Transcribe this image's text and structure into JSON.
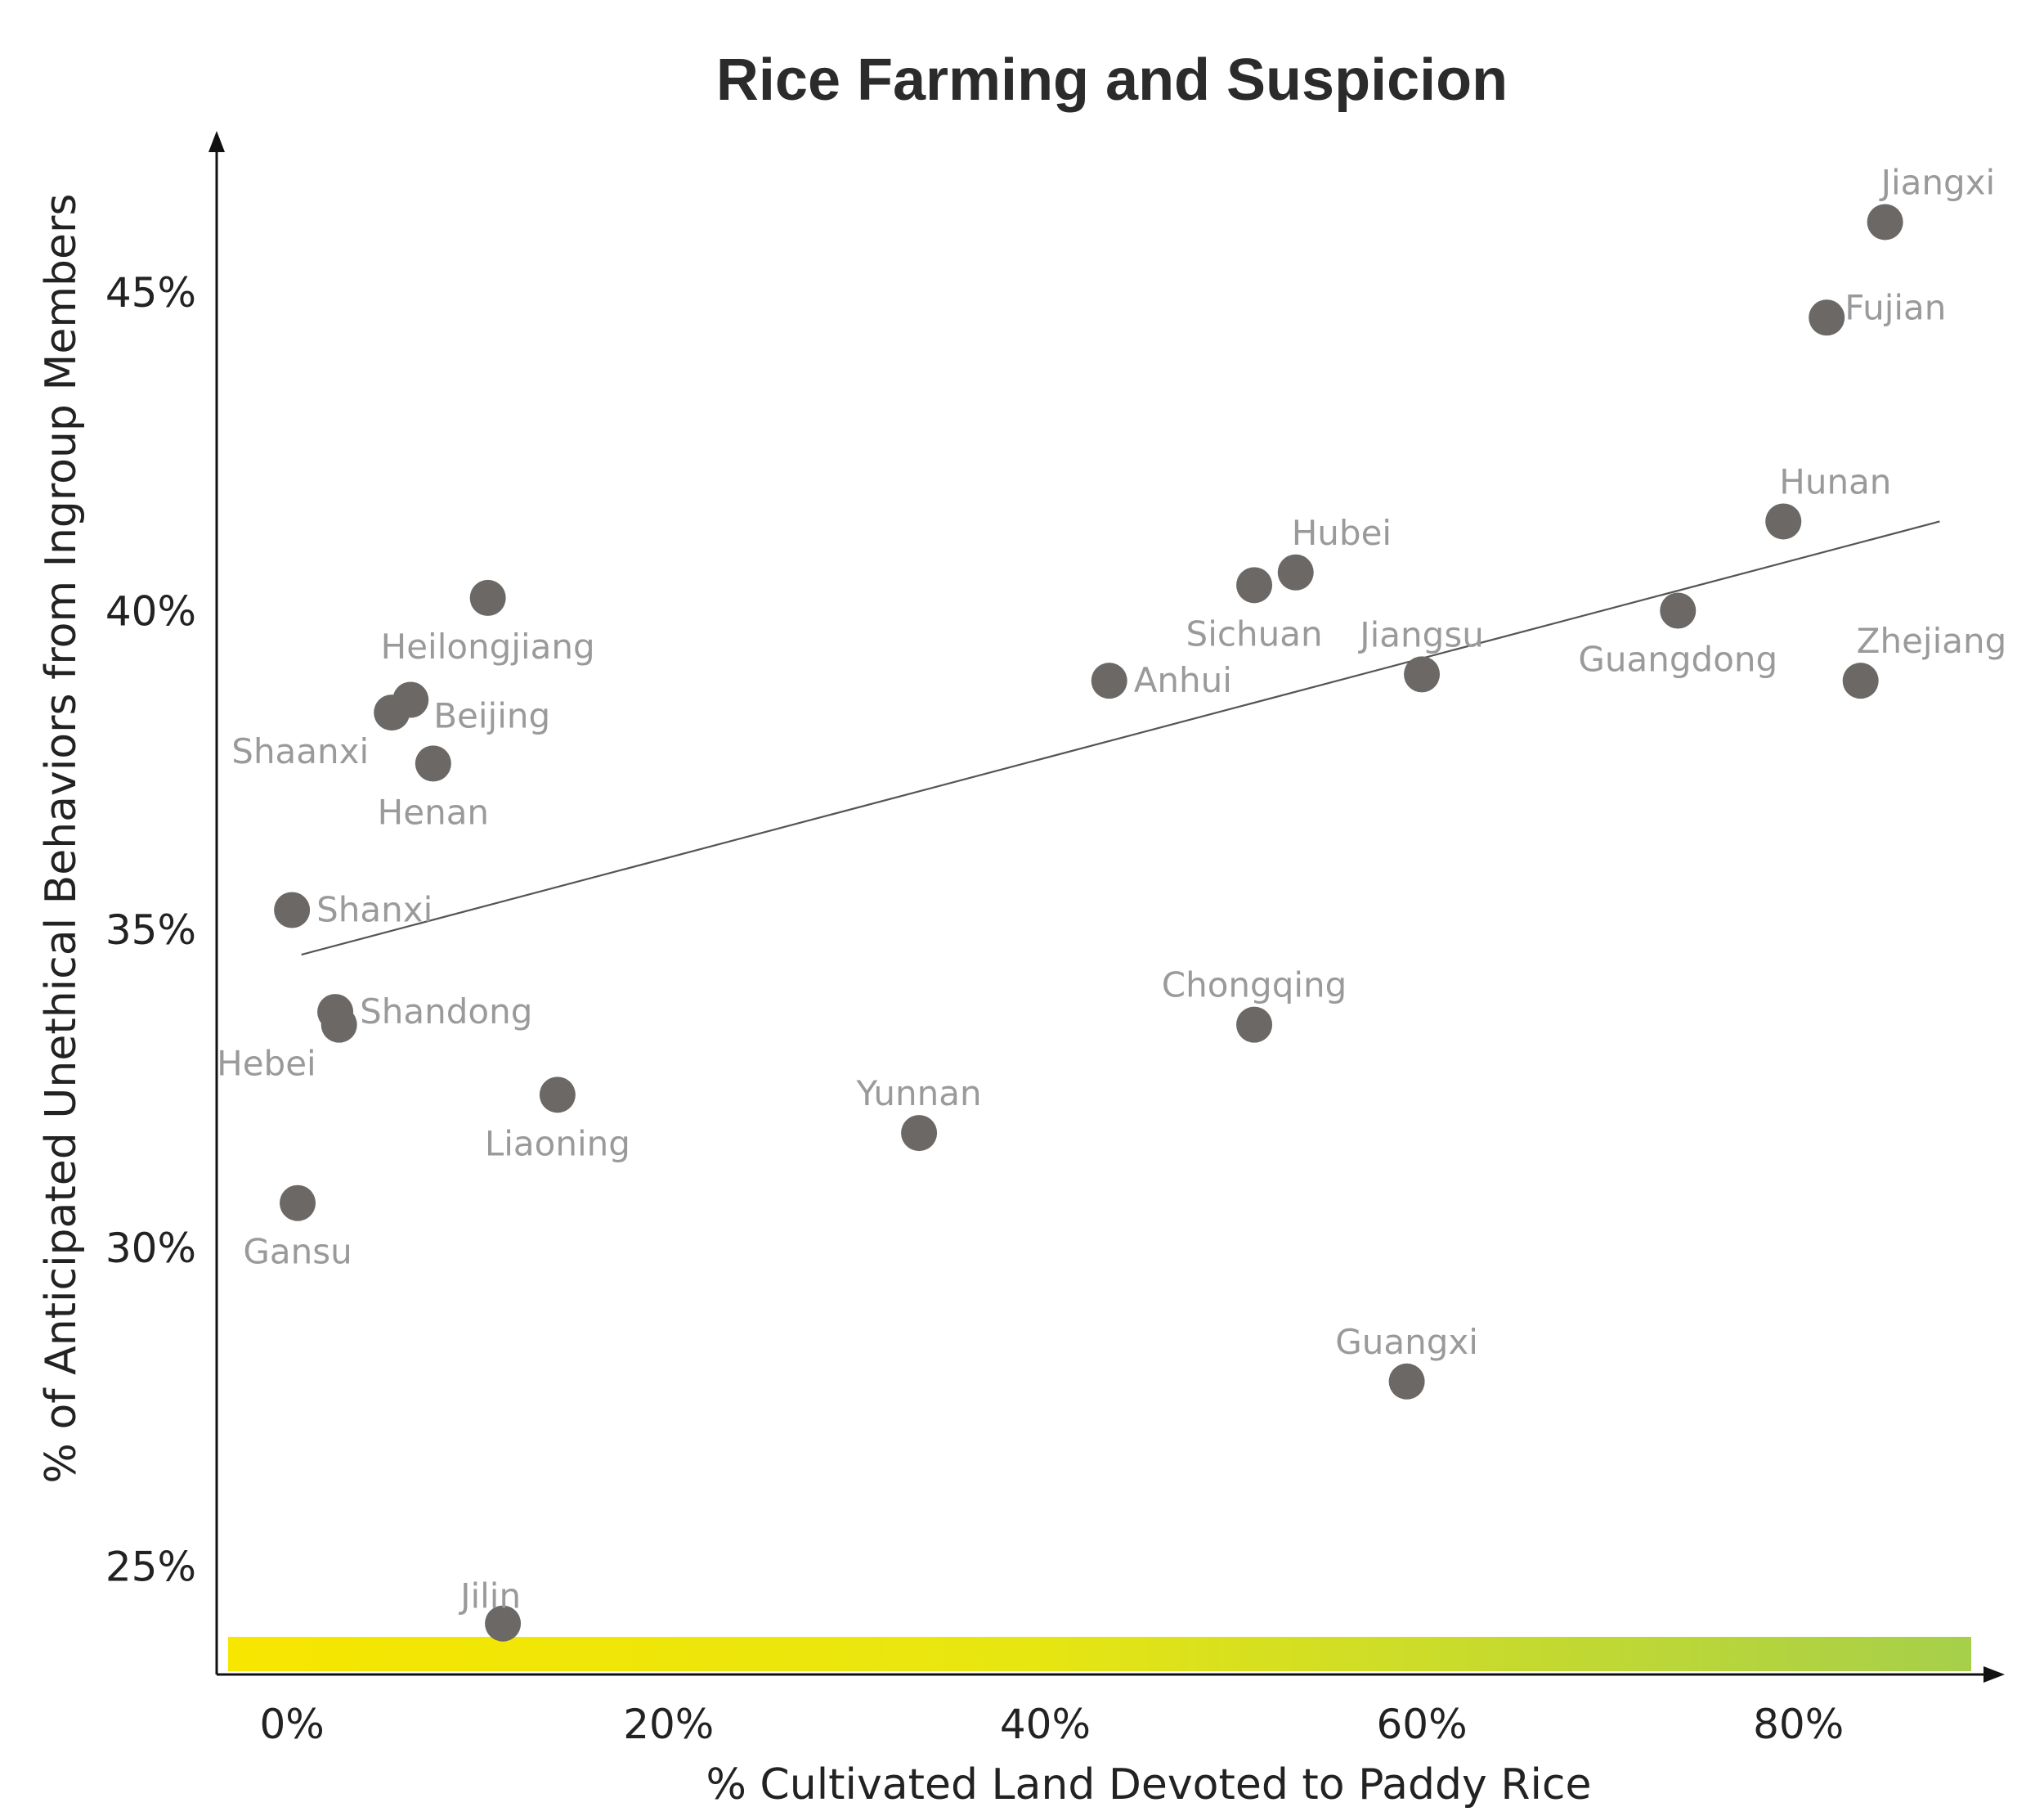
{
  "chart_data": {
    "type": "scatter",
    "title": "Rice Farming and Suspicion",
    "xlabel": "% Cultivated Land Devoted to Paddy Rice",
    "ylabel": "% of Anticipated Unethical Behaviors from Ingroup Members",
    "xlim": [
      -4,
      90
    ],
    "ylim": [
      23.3,
      47.3
    ],
    "x_ticks": [
      {
        "value": 0,
        "label": "0%"
      },
      {
        "value": 20,
        "label": "20%"
      },
      {
        "value": 40,
        "label": "40%"
      },
      {
        "value": 60,
        "label": "60%"
      },
      {
        "value": 80,
        "label": "80%"
      }
    ],
    "y_ticks": [
      {
        "value": 25,
        "label": "25%"
      },
      {
        "value": 30,
        "label": "30%"
      },
      {
        "value": 35,
        "label": "35%"
      },
      {
        "value": 40,
        "label": "40%"
      },
      {
        "value": 45,
        "label": "45%"
      }
    ],
    "grid": false,
    "gradient_bar": {
      "from_color": "#f7e600",
      "to_color": "#a6cf4a"
    },
    "colors": {
      "points": "#6b6865",
      "labels": "#9a9a9a",
      "trendline": "#555555"
    },
    "trendline": {
      "x": [
        0.5,
        87.5
      ],
      "y": [
        34.6,
        41.4
      ]
    },
    "points": [
      {
        "name": "Jiangxi",
        "x": 84.6,
        "y": 46.1,
        "label_pos": "above-right"
      },
      {
        "name": "Fujian",
        "x": 81.5,
        "y": 44.6,
        "label_pos": "right-high"
      },
      {
        "name": "Hunan",
        "x": 79.2,
        "y": 41.4,
        "label_pos": "above-right"
      },
      {
        "name": "Guangdong",
        "x": 73.6,
        "y": 40.0,
        "label_pos": "below"
      },
      {
        "name": "Zhejiang",
        "x": 83.3,
        "y": 38.9,
        "label_pos": "above-right"
      },
      {
        "name": "Hubei",
        "x": 53.3,
        "y": 40.6,
        "label_pos": "above-right"
      },
      {
        "name": "Sichuan",
        "x": 51.1,
        "y": 40.4,
        "label_pos": "below"
      },
      {
        "name": "Jiangsu",
        "x": 60.0,
        "y": 39.0,
        "label_pos": "above"
      },
      {
        "name": "Anhui",
        "x": 43.4,
        "y": 38.9,
        "label_pos": "right"
      },
      {
        "name": "Chongqing",
        "x": 51.1,
        "y": 33.5,
        "label_pos": "above"
      },
      {
        "name": "Yunnan",
        "x": 33.3,
        "y": 31.8,
        "label_pos": "above"
      },
      {
        "name": "Guangxi",
        "x": 59.2,
        "y": 27.9,
        "label_pos": "above"
      },
      {
        "name": "Heilongjiang",
        "x": 10.4,
        "y": 40.2,
        "label_pos": "below"
      },
      {
        "name": "Beijing",
        "x": 6.3,
        "y": 38.6,
        "label_pos": "right-low"
      },
      {
        "name": "Shaanxi",
        "x": 5.3,
        "y": 38.4,
        "label_pos": "below-left"
      },
      {
        "name": "Henan",
        "x": 7.5,
        "y": 37.6,
        "label_pos": "below"
      },
      {
        "name": "Shanxi",
        "x": 0.0,
        "y": 35.3,
        "label_pos": "right"
      },
      {
        "name": "Shandong",
        "x": 2.3,
        "y": 33.7,
        "label_pos": "right"
      },
      {
        "name": "Hebei",
        "x": 2.5,
        "y": 33.5,
        "label_pos": "below-left"
      },
      {
        "name": "Liaoning",
        "x": 14.1,
        "y": 32.4,
        "label_pos": "below"
      },
      {
        "name": "Gansu",
        "x": 0.3,
        "y": 30.7,
        "label_pos": "below"
      },
      {
        "name": "Jilin",
        "x": 11.2,
        "y": 24.1,
        "label_pos": "above-left"
      }
    ]
  }
}
